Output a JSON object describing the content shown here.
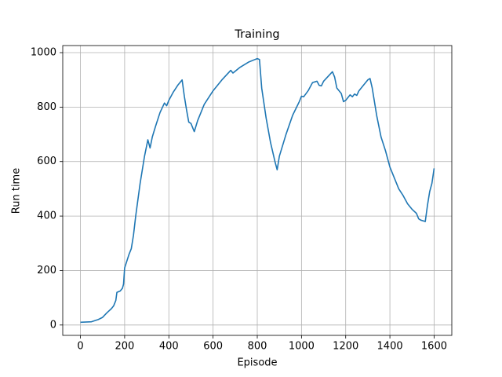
{
  "chart_data": {
    "type": "line",
    "title": "Training",
    "x_label": "Episode",
    "y_label": "Run time",
    "color": "#1f77b4",
    "grid": true,
    "x": [
      0,
      50,
      80,
      100,
      120,
      140,
      150,
      160,
      165,
      180,
      190,
      195,
      200,
      210,
      220,
      230,
      240,
      250,
      260,
      270,
      280,
      290,
      300,
      305,
      315,
      325,
      340,
      360,
      380,
      390,
      400,
      420,
      440,
      460,
      470,
      480,
      490,
      500,
      515,
      530,
      560,
      600,
      640,
      680,
      690,
      720,
      760,
      790,
      800,
      810,
      820,
      840,
      860,
      880,
      890,
      900,
      930,
      960,
      990,
      1000,
      1010,
      1030,
      1050,
      1070,
      1080,
      1090,
      1100,
      1140,
      1150,
      1160,
      1180,
      1190,
      1200,
      1220,
      1230,
      1240,
      1250,
      1260,
      1280,
      1300,
      1310,
      1320,
      1340,
      1360,
      1380,
      1400,
      1420,
      1440,
      1460,
      1480,
      1500,
      1520,
      1530,
      1540,
      1560,
      1570,
      1580,
      1590,
      1600
    ],
    "values": [
      10,
      12,
      20,
      28,
      45,
      60,
      70,
      90,
      120,
      125,
      135,
      150,
      210,
      235,
      260,
      280,
      330,
      400,
      460,
      520,
      570,
      620,
      660,
      680,
      650,
      690,
      730,
      780,
      815,
      805,
      825,
      855,
      880,
      900,
      840,
      790,
      745,
      740,
      710,
      750,
      810,
      860,
      900,
      935,
      925,
      945,
      965,
      975,
      978,
      975,
      870,
      760,
      670,
      600,
      570,
      620,
      700,
      770,
      820,
      840,
      838,
      860,
      890,
      895,
      880,
      878,
      895,
      930,
      910,
      870,
      850,
      820,
      825,
      845,
      838,
      848,
      843,
      860,
      880,
      900,
      905,
      870,
      770,
      690,
      640,
      580,
      540,
      500,
      475,
      445,
      425,
      410,
      390,
      385,
      380,
      440,
      490,
      520,
      575
    ],
    "xlim": [
      -80,
      1680
    ],
    "ylim": [
      -38,
      1026
    ],
    "xticks": [
      0,
      200,
      400,
      600,
      800,
      1000,
      1200,
      1400,
      1600
    ],
    "yticks": [
      0,
      200,
      400,
      600,
      800,
      1000
    ]
  }
}
